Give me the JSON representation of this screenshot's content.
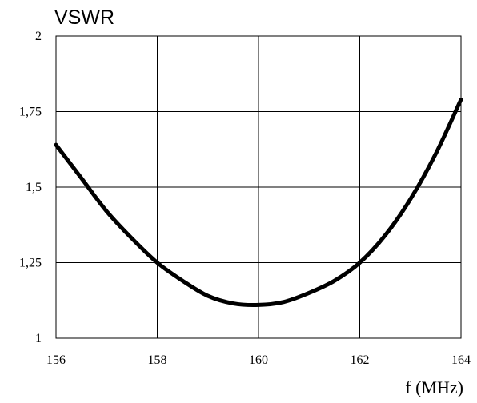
{
  "chart_data": {
    "type": "line",
    "title": "",
    "ylabel": "VSWR",
    "xlabel": "f (MHz)",
    "xlim": [
      156,
      164
    ],
    "ylim": [
      1,
      2
    ],
    "grid": true,
    "x_ticks": [
      {
        "value": 156,
        "label": "156"
      },
      {
        "value": 158,
        "label": "158"
      },
      {
        "value": 160,
        "label": "160"
      },
      {
        "value": 162,
        "label": "162"
      },
      {
        "value": 164,
        "label": "164"
      }
    ],
    "y_ticks": [
      {
        "value": 1,
        "label": "1"
      },
      {
        "value": 1.25,
        "label": "1,25"
      },
      {
        "value": 1.5,
        "label": "1,5"
      },
      {
        "value": 1.75,
        "label": "1,75"
      },
      {
        "value": 2,
        "label": "2"
      }
    ],
    "series": [
      {
        "color": "#000000",
        "x": [
          156,
          156.5,
          157,
          157.5,
          158,
          158.5,
          159,
          159.5,
          160,
          160.5,
          161,
          161.5,
          162,
          162.5,
          163,
          163.5,
          164
        ],
        "y": [
          1.64,
          1.53,
          1.42,
          1.33,
          1.25,
          1.19,
          1.14,
          1.115,
          1.11,
          1.12,
          1.15,
          1.19,
          1.25,
          1.34,
          1.46,
          1.61,
          1.79
        ]
      }
    ]
  }
}
